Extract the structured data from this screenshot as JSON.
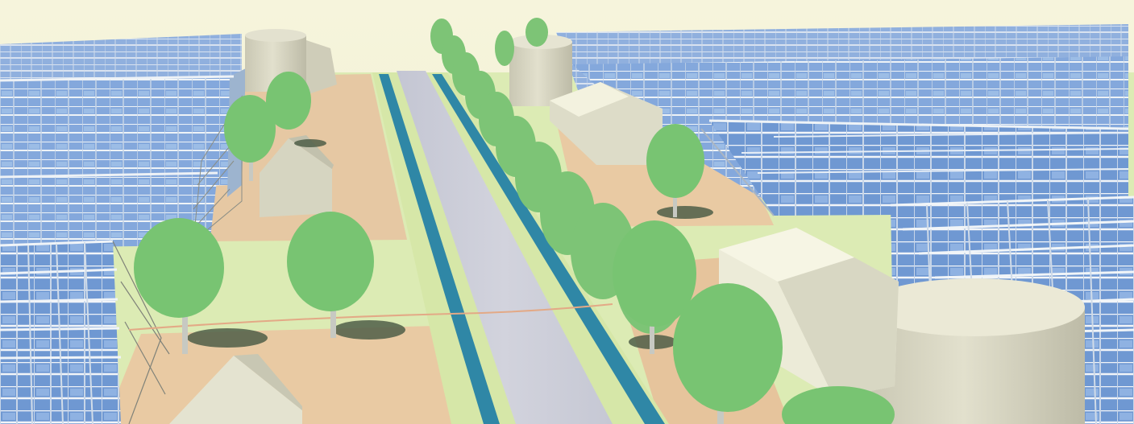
{
  "scene": {
    "colors": {
      "sky": "#f4f2d6",
      "grass": "#dcebb4",
      "soil": "#e8c9a2",
      "road": "#c9cbd6",
      "canal": "#2f87a6",
      "glass_blue": "#7ea2d6",
      "glass_frame": "#e9eef3",
      "tree_green": "#78c472",
      "tree_shadow": "#4e5f48",
      "building": "#ecebd2",
      "silo": "#d7d5c2"
    }
  }
}
